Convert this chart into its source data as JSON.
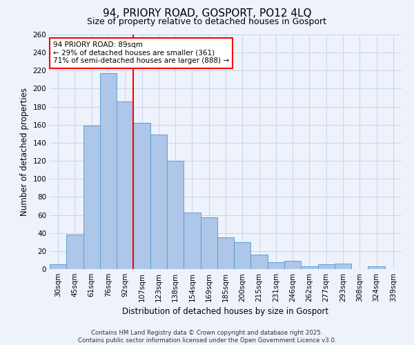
{
  "title_line1": "94, PRIORY ROAD, GOSPORT, PO12 4LQ",
  "title_line2": "Size of property relative to detached houses in Gosport",
  "xlabel": "Distribution of detached houses by size in Gosport",
  "ylabel": "Number of detached properties",
  "categories": [
    "30sqm",
    "45sqm",
    "61sqm",
    "76sqm",
    "92sqm",
    "107sqm",
    "123sqm",
    "138sqm",
    "154sqm",
    "169sqm",
    "185sqm",
    "200sqm",
    "215sqm",
    "231sqm",
    "246sqm",
    "262sqm",
    "277sqm",
    "293sqm",
    "308sqm",
    "324sqm",
    "339sqm"
  ],
  "values": [
    5,
    38,
    159,
    217,
    186,
    162,
    149,
    120,
    63,
    57,
    35,
    30,
    16,
    8,
    9,
    3,
    5,
    6,
    0,
    3,
    0
  ],
  "bar_color": "#aec6e8",
  "bar_edge_color": "#5a9fd4",
  "background_color": "#eef2fb",
  "grid_color": "#c8d4ee",
  "vline_x_index": 4,
  "vline_color": "red",
  "annotation_title": "94 PRIORY ROAD: 89sqm",
  "annotation_line1": "← 29% of detached houses are smaller (361)",
  "annotation_line2": "71% of semi-detached houses are larger (888) →",
  "annotation_box_color": "white",
  "annotation_box_edge_color": "red",
  "ylim": [
    0,
    260
  ],
  "yticks": [
    0,
    20,
    40,
    60,
    80,
    100,
    120,
    140,
    160,
    180,
    200,
    220,
    240,
    260
  ],
  "footnote1": "Contains HM Land Registry data © Crown copyright and database right 2025.",
  "footnote2": "Contains public sector information licensed under the Open Government Licence v3.0."
}
